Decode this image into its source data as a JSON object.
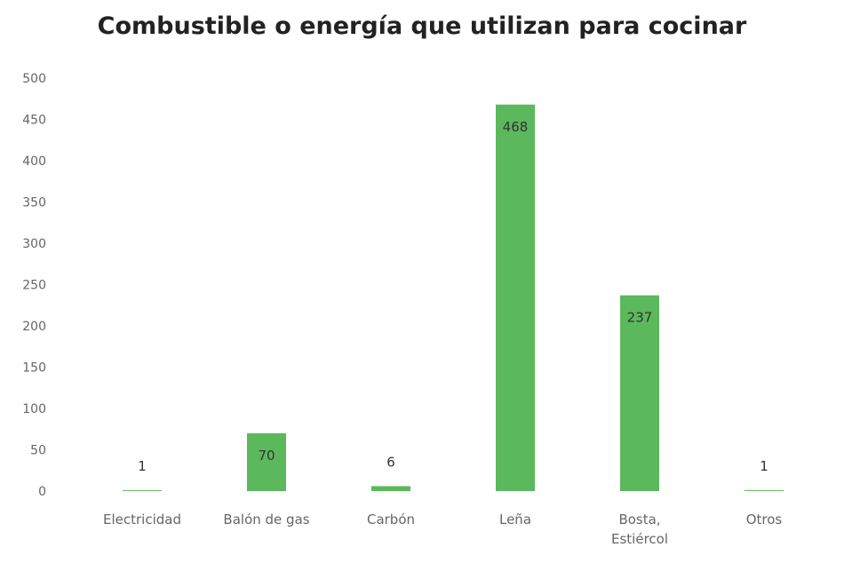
{
  "chart_data": {
    "type": "bar",
    "title": "Combustible o energía que utilizan para cocinar",
    "xlabel": "",
    "ylabel": "",
    "categories": [
      "Electricidad",
      "Balón de gas",
      "Carbón",
      "Leña",
      "Bosta, Estiércol",
      "Otros"
    ],
    "category_lines": [
      [
        "Electricidad"
      ],
      [
        "Balón de gas"
      ],
      [
        "Carbón"
      ],
      [
        "Leña"
      ],
      [
        "Bosta,",
        "Estiércol"
      ],
      [
        "Otros"
      ]
    ],
    "values": [
      1,
      70,
      6,
      468,
      237,
      1
    ],
    "data_labels": [
      "1",
      "70",
      "6",
      "468",
      "237",
      "1"
    ],
    "ylim": [
      0,
      500
    ],
    "yticks": [
      0,
      50,
      100,
      150,
      200,
      250,
      300,
      350,
      400,
      450,
      500
    ],
    "grid": false,
    "legend": "none",
    "colors": {
      "bar": "#5cb85c",
      "axis_text": "#666666",
      "label_text": "#333333",
      "title": "#222222"
    }
  }
}
